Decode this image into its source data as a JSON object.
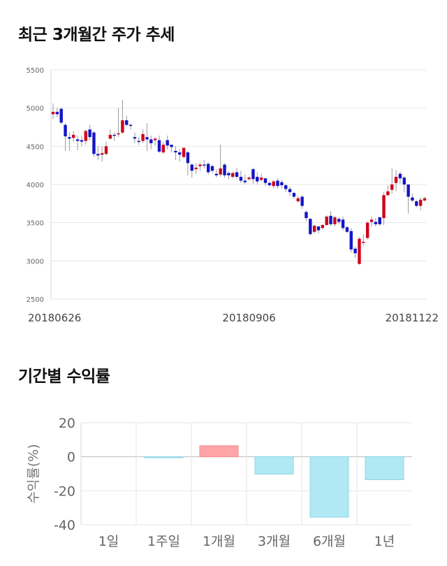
{
  "sections": {
    "trend_title": "최근 3개월간 주가 추세",
    "returns_title": "기간별 수익률"
  },
  "chart_data": [
    {
      "type": "candlestick",
      "title": "최근 3개월간 주가 추세",
      "ylim": [
        2500,
        5500
      ],
      "yticks": [
        2500,
        3000,
        3500,
        4000,
        4500,
        5000,
        5500
      ],
      "xtick_labels": [
        "20180626",
        "20180906",
        "20181122"
      ],
      "xtick_index": [
        0,
        48,
        98
      ],
      "grid": true,
      "colors": {
        "up": "#d0021b",
        "down": "#1414c8",
        "wick": "#999999",
        "grid": "#e6e6e6"
      },
      "candles": [
        [
          4920,
          4950,
          4860,
          5060
        ],
        [
          4950,
          4920,
          4880,
          5000
        ],
        [
          4990,
          4810,
          4790,
          5010
        ],
        [
          4780,
          4630,
          4440,
          4800
        ],
        [
          4620,
          4600,
          4440,
          4680
        ],
        [
          4610,
          4650,
          4560,
          4700
        ],
        [
          4590,
          4570,
          4450,
          4640
        ],
        [
          4580,
          4560,
          4500,
          4640
        ],
        [
          4570,
          4700,
          4520,
          4720
        ],
        [
          4720,
          4620,
          4580,
          4780
        ],
        [
          4680,
          4400,
          4360,
          4700
        ],
        [
          4400,
          4380,
          4320,
          4500
        ],
        [
          4390,
          4410,
          4300,
          4500
        ],
        [
          4400,
          4500,
          4380,
          4560
        ],
        [
          4600,
          4650,
          4590,
          4720
        ],
        [
          4650,
          4640,
          4570,
          4680
        ],
        [
          4660,
          4670,
          4620,
          5000
        ],
        [
          4680,
          4840,
          4660,
          5110
        ],
        [
          4840,
          4780,
          4760,
          4900
        ],
        [
          4780,
          4770,
          4720,
          4800
        ],
        [
          4620,
          4600,
          4540,
          4680
        ],
        [
          4570,
          4560,
          4520,
          4620
        ],
        [
          4570,
          4660,
          4540,
          4720
        ],
        [
          4620,
          4590,
          4440,
          4800
        ],
        [
          4590,
          4540,
          4460,
          4640
        ],
        [
          4580,
          4600,
          4510,
          4620
        ],
        [
          4580,
          4430,
          4410,
          4640
        ],
        [
          4420,
          4520,
          4400,
          4560
        ],
        [
          4580,
          4510,
          4460,
          4640
        ],
        [
          4520,
          4490,
          4420,
          4520
        ],
        [
          4440,
          4420,
          4320,
          4500
        ],
        [
          4420,
          4390,
          4300,
          4460
        ],
        [
          4360,
          4480,
          4340,
          4480
        ],
        [
          4420,
          4280,
          4120,
          4440
        ],
        [
          4260,
          4180,
          4090,
          4280
        ],
        [
          4200,
          4220,
          4140,
          4280
        ],
        [
          4240,
          4260,
          4180,
          4280
        ],
        [
          4260,
          4250,
          4210,
          4320
        ],
        [
          4270,
          4160,
          4130,
          4290
        ],
        [
          4240,
          4180,
          4150,
          4260
        ],
        [
          4140,
          4120,
          4090,
          4200
        ],
        [
          4130,
          4210,
          4100,
          4520
        ],
        [
          4260,
          4120,
          4090,
          4280
        ],
        [
          4150,
          4120,
          4070,
          4170
        ],
        [
          4100,
          4150,
          4080,
          4170
        ],
        [
          4160,
          4100,
          4070,
          4220
        ],
        [
          4100,
          4050,
          4020,
          4180
        ],
        [
          4050,
          4030,
          4000,
          4130
        ],
        [
          4070,
          4090,
          4050,
          4110
        ],
        [
          4200,
          4070,
          4010,
          4220
        ],
        [
          4100,
          4040,
          4000,
          4160
        ],
        [
          4060,
          4090,
          4040,
          4140
        ],
        [
          4080,
          4020,
          3980,
          4090
        ],
        [
          4020,
          3990,
          3970,
          4040
        ],
        [
          3980,
          4040,
          3950,
          4060
        ],
        [
          4050,
          3980,
          3950,
          4080
        ],
        [
          4030,
          3990,
          3950,
          4060
        ],
        [
          3990,
          3940,
          3900,
          4010
        ],
        [
          3940,
          3900,
          3850,
          3970
        ],
        [
          3890,
          3840,
          3810,
          3900
        ],
        [
          3780,
          3820,
          3760,
          3850
        ],
        [
          3840,
          3720,
          3680,
          3860
        ],
        [
          3640,
          3560,
          3520,
          3660
        ],
        [
          3550,
          3350,
          3330,
          3560
        ],
        [
          3380,
          3460,
          3360,
          3470
        ],
        [
          3450,
          3400,
          3360,
          3460
        ],
        [
          3430,
          3470,
          3410,
          3480
        ],
        [
          3470,
          3580,
          3460,
          3600
        ],
        [
          3590,
          3480,
          3460,
          3650
        ],
        [
          3480,
          3570,
          3450,
          3590
        ],
        [
          3550,
          3510,
          3480,
          3570
        ],
        [
          3540,
          3430,
          3400,
          3580
        ],
        [
          3440,
          3380,
          3360,
          3460
        ],
        [
          3390,
          3150,
          3110,
          3430
        ],
        [
          3160,
          3100,
          3040,
          3190
        ],
        [
          2960,
          3290,
          2950,
          3310
        ],
        [
          3240,
          3250,
          3200,
          3350
        ],
        [
          3300,
          3500,
          3280,
          3520
        ],
        [
          3510,
          3540,
          3450,
          3580
        ],
        [
          3510,
          3480,
          3450,
          3560
        ],
        [
          3570,
          3480,
          3460,
          3580
        ],
        [
          3560,
          3860,
          3470,
          3900
        ],
        [
          3860,
          3910,
          3850,
          3990
        ],
        [
          3930,
          4000,
          3880,
          4210
        ],
        [
          4020,
          4100,
          3910,
          4190
        ],
        [
          4140,
          4080,
          4010,
          4170
        ],
        [
          4090,
          4000,
          3900,
          4110
        ],
        [
          4000,
          3840,
          3620,
          4000
        ],
        [
          3830,
          3790,
          3770,
          3880
        ],
        [
          3780,
          3720,
          3700,
          3800
        ],
        [
          3720,
          3800,
          3660,
          3830
        ],
        [
          3790,
          3820,
          3780,
          3840
        ]
      ]
    },
    {
      "type": "bar",
      "title": "기간별 수익률",
      "ylabel": "수익률(%)",
      "ylim": [
        -40,
        20
      ],
      "yticks": [
        20,
        0,
        -20,
        -40
      ],
      "categories": [
        "1일",
        "1주일",
        "1개월",
        "3개월",
        "6개월",
        "1년"
      ],
      "values": [
        0,
        -0.4,
        6.5,
        -10.2,
        -35.5,
        -13.5
      ],
      "colors": {
        "positive": "#ffa5a8",
        "negative": "#b0e9f4"
      },
      "grid": true
    }
  ]
}
